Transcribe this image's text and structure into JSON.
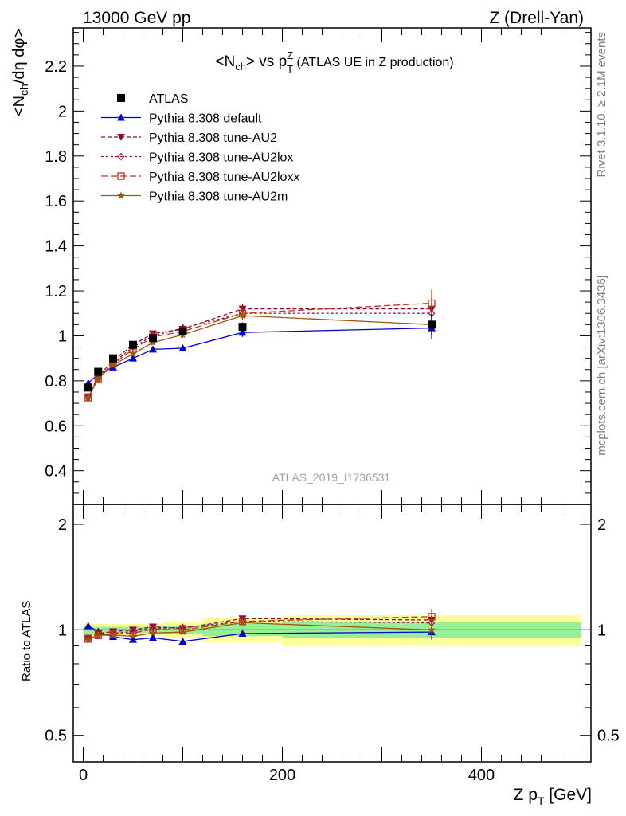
{
  "header": {
    "left": "13000 GeV pp",
    "right": "Z (Drell-Yan)"
  },
  "side_labels": {
    "rivet": "Rivet 3.1.10, ≥ 2.1M events",
    "mcplots": "mcplots.cern.ch [arXiv:1306.3436]"
  },
  "chart_data": {
    "type": "line",
    "title_parts": {
      "main": "<N",
      "sub1": "ch",
      "mid": "> vs p",
      "sup": "Z",
      "sub2": "T",
      "extra": " (ATLAS UE in Z production)"
    },
    "ylabel_parts": {
      "a": "<N",
      "sub1": "ch",
      "b": "/dη dφ>"
    },
    "xlabel_parts": {
      "a": "Z p",
      "sub": "T",
      "b": " [GeV]"
    },
    "ratio_ylabel": "Ratio to ATLAS",
    "watermark": "ATLAS_2019_I1736531",
    "xlim": [
      -10,
      510
    ],
    "ylim": [
      0.25,
      2.37
    ],
    "ratio_ylim": [
      0.42,
      2.28
    ],
    "x_ticks": [
      0,
      200,
      400
    ],
    "y_ticks": [
      0.4,
      0.6,
      0.8,
      1,
      1.2,
      1.4,
      1.6,
      1.8,
      2,
      2.2
    ],
    "ratio_y_ticks": [
      0.5,
      1,
      2
    ],
    "x": [
      5,
      15,
      30,
      50,
      70,
      100,
      160,
      350
    ],
    "series": [
      {
        "name": "ATLAS",
        "color": "#000000",
        "marker": "square",
        "values": [
          0.77,
          0.84,
          0.9,
          0.96,
          0.99,
          1.02,
          1.04,
          1.05
        ],
        "errors": [
          0.01,
          0.01,
          0.01,
          0.01,
          0.01,
          0.01,
          0.02,
          0.05
        ]
      },
      {
        "name": "Pythia 8.308 default",
        "color": "#0000cc",
        "marker": "triangle-up",
        "dash": "",
        "values": [
          0.79,
          0.83,
          0.86,
          0.9,
          0.94,
          0.945,
          1.015,
          1.035
        ],
        "errors": [
          0.01,
          0.01,
          0.01,
          0.01,
          0.01,
          0.015,
          0.02,
          0.05
        ]
      },
      {
        "name": "Pythia 8.308 tune-AU2",
        "color": "#8b0a3a",
        "marker": "triangle-down",
        "dash": "5,3",
        "values": [
          0.73,
          0.82,
          0.89,
          0.96,
          1.01,
          1.03,
          1.12,
          1.12
        ],
        "errors": [
          0.01,
          0.01,
          0.01,
          0.01,
          0.01,
          0.015,
          0.02,
          0.05
        ]
      },
      {
        "name": "Pythia 8.308 tune-AU2lox",
        "color": "#a0103c",
        "marker": "diamond-open",
        "dash": "3,3",
        "values": [
          0.725,
          0.81,
          0.88,
          0.95,
          1.0,
          1.035,
          1.1,
          1.1
        ],
        "errors": [
          0.01,
          0.01,
          0.01,
          0.01,
          0.01,
          0.015,
          0.02,
          0.05
        ]
      },
      {
        "name": "Pythia 8.308 tune-AU2loxx",
        "color": "#c0341c",
        "marker": "square-open",
        "dash": "8,4",
        "values": [
          0.725,
          0.81,
          0.875,
          0.94,
          0.995,
          1.02,
          1.1,
          1.145
        ],
        "errors": [
          0.01,
          0.01,
          0.01,
          0.01,
          0.01,
          0.015,
          0.02,
          0.06
        ]
      },
      {
        "name": "Pythia 8.308 tune-AU2m",
        "color": "#9a5a0a",
        "marker": "star",
        "dash": "",
        "values": [
          0.725,
          0.81,
          0.87,
          0.92,
          0.97,
          1.005,
          1.09,
          1.05
        ],
        "errors": [
          0.01,
          0.01,
          0.01,
          0.01,
          0.01,
          0.015,
          0.02,
          0.05
        ]
      }
    ],
    "ratio_bands": {
      "bins": [
        0,
        10,
        20,
        40,
        60,
        80,
        120,
        200,
        500
      ],
      "green": [
        0.025,
        0.02,
        0.02,
        0.02,
        0.02,
        0.025,
        0.04,
        0.05
      ],
      "yellow": [
        0.045,
        0.04,
        0.04,
        0.04,
        0.04,
        0.05,
        0.08,
        0.1
      ]
    }
  }
}
